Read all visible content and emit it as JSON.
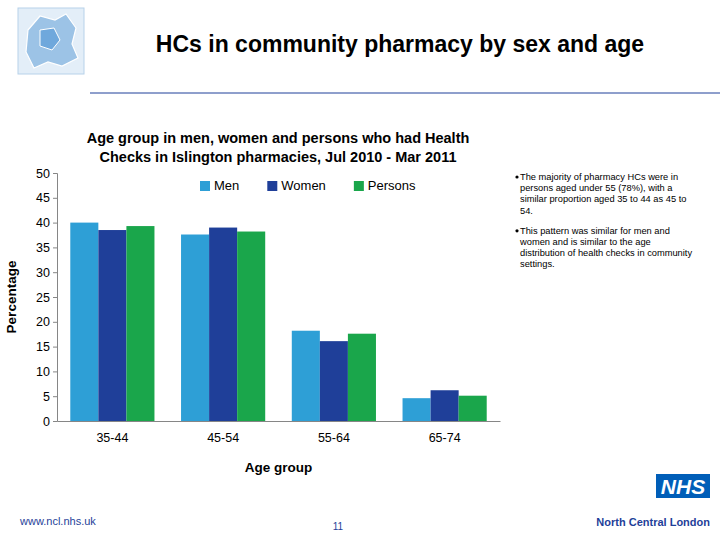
{
  "slide": {
    "title": "HCs in community pharmacy by sex and age",
    "bullets": [
      "The majority of pharmacy HCs were in persons aged under 55 (78%), with a similar proportion aged 35 to 44 as 45 to 54.",
      "This pattern was similar for men and women and is similar to the age distribution of health checks in community settings."
    ],
    "footer_url": "www.ncl.nhs.uk",
    "page_number": "11",
    "logo_text": "NHS",
    "organisation": "North Central London"
  },
  "chart_data": {
    "type": "bar",
    "title": "Age group in men, women and persons who had Health Checks in Islington pharmacies, Jul 2010 - Mar 2011",
    "x_label": "Age group",
    "y_label": "Percentage",
    "categories": [
      "35-44",
      "45-54",
      "55-64",
      "65-74"
    ],
    "series": [
      {
        "name": "Men",
        "color": "#2e9fd6",
        "values": [
          40.0,
          37.6,
          18.2,
          4.6
        ]
      },
      {
        "name": "Women",
        "color": "#1f3f99",
        "values": [
          38.5,
          39.0,
          16.1,
          6.2
        ]
      },
      {
        "name": "Persons",
        "color": "#1aa64b",
        "values": [
          39.3,
          38.2,
          17.6,
          5.1
        ]
      }
    ],
    "ylim": [
      0,
      50
    ],
    "yticks": [
      0,
      5,
      10,
      15,
      20,
      25,
      30,
      35,
      40,
      45,
      50
    ],
    "grid": false,
    "legend": "top"
  }
}
